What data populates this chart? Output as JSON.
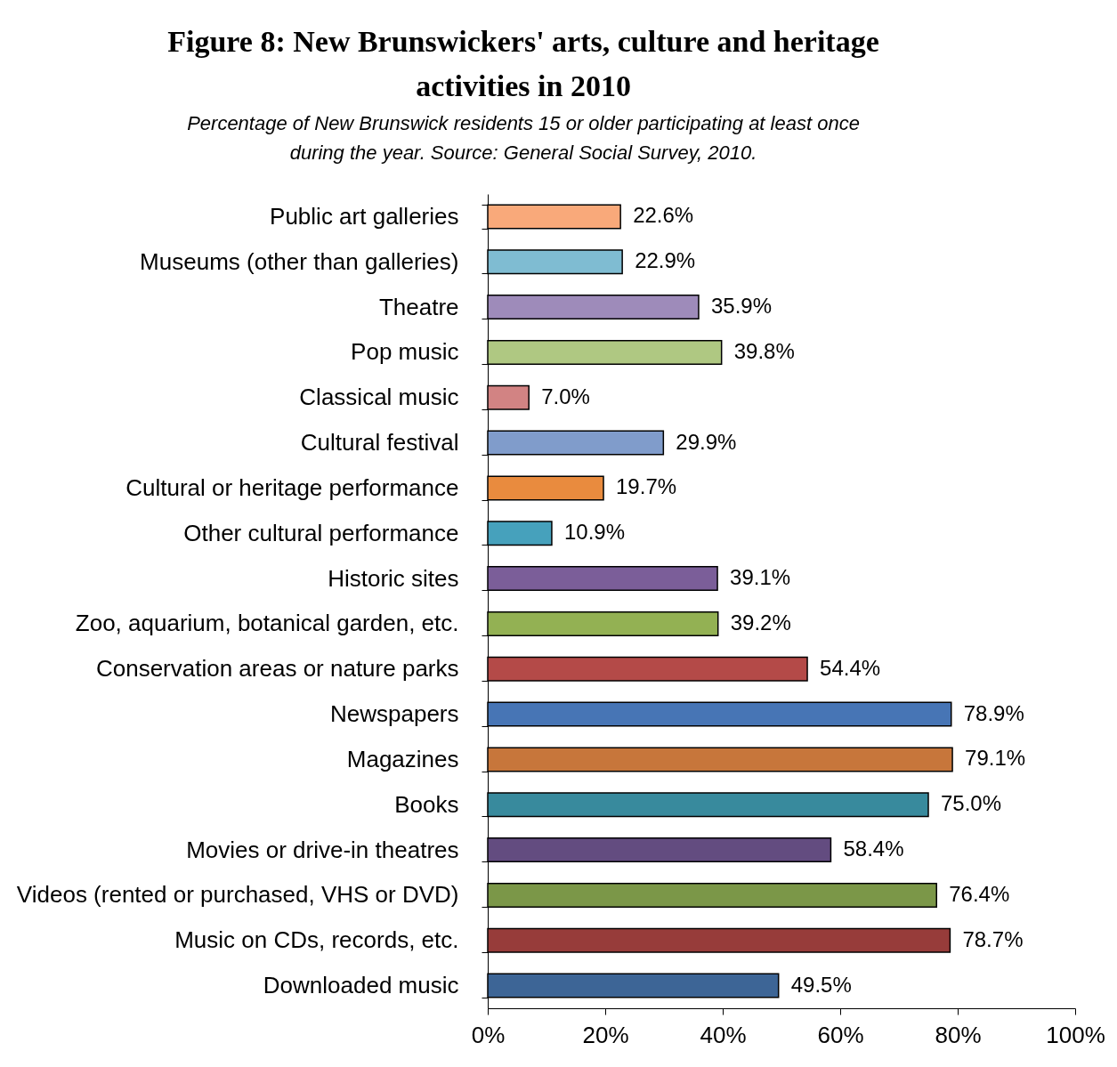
{
  "chart_data": {
    "type": "bar",
    "orientation": "horizontal",
    "title": "Figure 8: New Brunswickers' arts, culture and heritage activities in 2010",
    "subtitle": "Percentage of New Brunswick residents 15 or older participating at least once during the year. Source: General Social Survey, 2010.",
    "categories": [
      "Public art galleries",
      "Museums (other than galleries)",
      "Theatre",
      "Pop music",
      "Classical music",
      "Cultural festival",
      "Cultural or heritage performance",
      "Other cultural performance",
      "Historic sites",
      "Zoo, aquarium, botanical garden, etc.",
      "Conservation areas or nature parks",
      "Newspapers",
      "Magazines",
      "Books",
      "Movies or drive-in theatres",
      "Videos (rented or purchased, VHS or DVD)",
      "Music on CDs, records, etc.",
      "Downloaded music"
    ],
    "values": [
      22.6,
      22.9,
      35.9,
      39.8,
      7.0,
      29.9,
      19.7,
      10.9,
      39.1,
      39.2,
      54.4,
      78.9,
      79.1,
      75.0,
      58.4,
      76.4,
      78.7,
      49.5
    ],
    "value_labels": [
      "22.6%",
      "22.9%",
      "35.9%",
      "39.8%",
      "7.0%",
      "29.9%",
      "19.7%",
      "10.9%",
      "39.1%",
      "39.2%",
      "54.4%",
      "78.9%",
      "79.1%",
      "75.0%",
      "58.4%",
      "76.4%",
      "78.7%",
      "49.5%"
    ],
    "colors": [
      "#f9a97a",
      "#7fbcd2",
      "#9e8bba",
      "#afc882",
      "#d28383",
      "#809ccb",
      "#e98b3e",
      "#46a1bc",
      "#7b5e99",
      "#93b153",
      "#b44a48",
      "#4775b5",
      "#c7763b",
      "#388a9d",
      "#634c80",
      "#7b9748",
      "#973c3a",
      "#3d6596"
    ],
    "xlim": [
      0,
      100
    ],
    "xticks": [
      {
        "value": 0,
        "label": "0%"
      },
      {
        "value": 20,
        "label": "20%"
      },
      {
        "value": 40,
        "label": "40%"
      },
      {
        "value": 60,
        "label": "60%"
      },
      {
        "value": 80,
        "label": "80%"
      },
      {
        "value": 100,
        "label": "100%"
      }
    ],
    "grid": false
  }
}
